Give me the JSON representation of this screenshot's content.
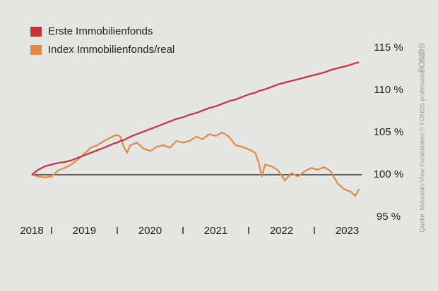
{
  "chart_data": {
    "type": "line",
    "x": [
      2018.7,
      2018.8,
      2018.9,
      2019.0,
      2019.1,
      2019.2,
      2019.3,
      2019.4,
      2019.5,
      2019.6,
      2019.7,
      2019.8,
      2019.95,
      2020.0,
      2020.05,
      2020.1,
      2020.15,
      2020.2,
      2020.3,
      2020.4,
      2020.5,
      2020.6,
      2020.7,
      2020.8,
      2020.9,
      2021.0,
      2021.1,
      2021.2,
      2021.3,
      2021.4,
      2021.5,
      2021.6,
      2021.7,
      2021.8,
      2021.9,
      2022.0,
      2022.1,
      2022.15,
      2022.2,
      2022.25,
      2022.35,
      2022.45,
      2022.55,
      2022.65,
      2022.75,
      2022.85,
      2022.95,
      2023.05,
      2023.15,
      2023.25,
      2023.35,
      2023.45,
      2023.55,
      2023.62,
      2023.68
    ],
    "series": [
      {
        "name": "Erste Immobilienfonds",
        "color": "#c8323a",
        "values": [
          100.0,
          100.6,
          101.0,
          101.2,
          101.4,
          101.5,
          101.7,
          102.0,
          102.3,
          102.6,
          102.9,
          103.2,
          103.7,
          103.8,
          104.0,
          104.1,
          104.3,
          104.5,
          104.8,
          105.1,
          105.4,
          105.7,
          106.0,
          106.3,
          106.6,
          106.8,
          107.1,
          107.3,
          107.6,
          107.9,
          108.1,
          108.4,
          108.7,
          108.9,
          109.2,
          109.5,
          109.7,
          109.9,
          110.0,
          110.1,
          110.4,
          110.7,
          110.9,
          111.1,
          111.3,
          111.5,
          111.7,
          111.9,
          112.1,
          112.4,
          112.6,
          112.8,
          113.0,
          113.2,
          113.3
        ]
      },
      {
        "name": "Index Immobilienfonds/real",
        "color": "#e08a45",
        "values": [
          100.0,
          99.8,
          99.7,
          99.8,
          100.5,
          100.8,
          101.2,
          101.8,
          102.5,
          103.2,
          103.5,
          104.0,
          104.6,
          104.7,
          104.5,
          103.3,
          102.6,
          103.5,
          103.8,
          103.1,
          102.8,
          103.3,
          103.5,
          103.2,
          104.0,
          103.8,
          104.0,
          104.5,
          104.2,
          104.8,
          104.6,
          105.0,
          104.5,
          103.5,
          103.3,
          103.0,
          102.6,
          101.5,
          99.8,
          101.2,
          101.0,
          100.5,
          99.3,
          100.2,
          99.8,
          100.4,
          100.8,
          100.6,
          100.9,
          100.4,
          99.0,
          98.3,
          98.0,
          97.5,
          98.3
        ]
      }
    ],
    "xlim": [
      2018.7,
      2023.72
    ],
    "xticks": [
      {
        "value": 2018.7,
        "label": "2018"
      },
      {
        "value": 2019,
        "label": "I"
      },
      {
        "value": 2019.5,
        "label": "2019"
      },
      {
        "value": 2020,
        "label": "I"
      },
      {
        "value": 2020.5,
        "label": "2020"
      },
      {
        "value": 2021,
        "label": "I"
      },
      {
        "value": 2021.5,
        "label": "2021"
      },
      {
        "value": 2022,
        "label": "I"
      },
      {
        "value": 2022.5,
        "label": "2022"
      },
      {
        "value": 2023,
        "label": "I"
      },
      {
        "value": 2023.5,
        "label": "2023"
      }
    ],
    "ylim": [
      95,
      115
    ],
    "yticks": [
      {
        "value": 95,
        "label": "95 %"
      },
      {
        "value": 100,
        "label": "100 %"
      },
      {
        "value": 105,
        "label": "105 %"
      },
      {
        "value": 110,
        "label": "110 %"
      },
      {
        "value": 115,
        "label": "115 %"
      }
    ],
    "reference_line": 100,
    "legend": "top-left",
    "source": "Quelle: Mountain-View Fondsdaten  © FONDS professionell 2023",
    "logo": "FONDS"
  }
}
